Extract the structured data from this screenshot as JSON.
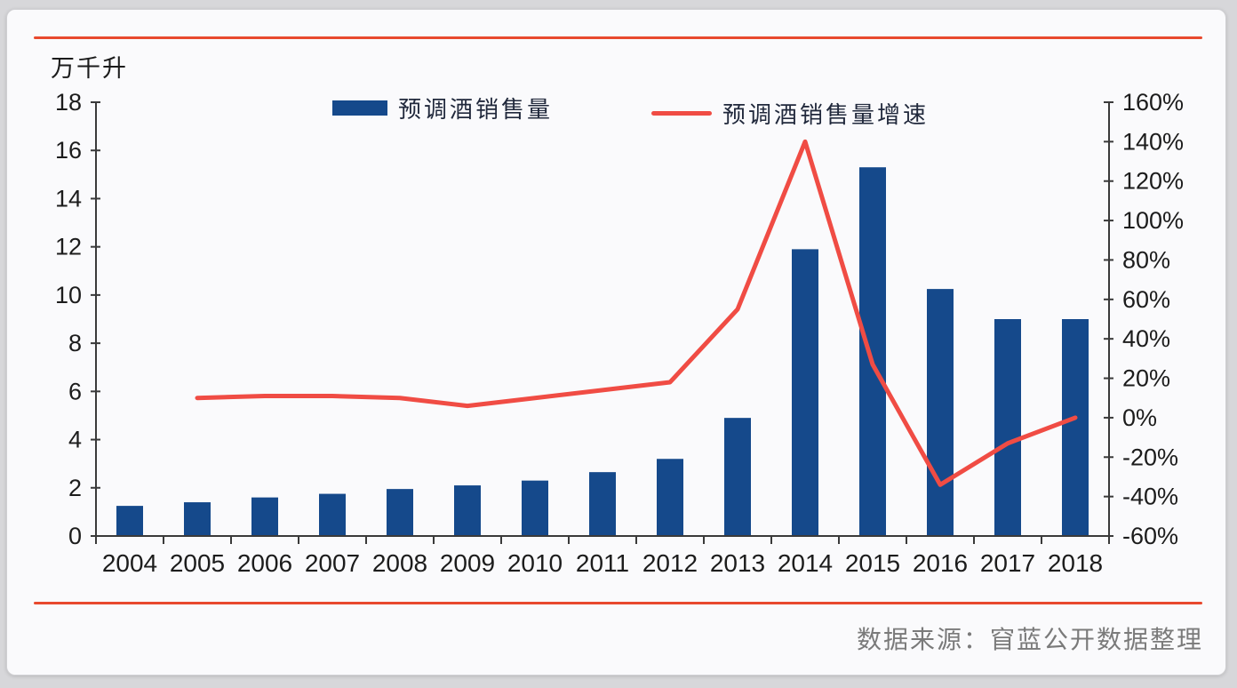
{
  "page": {
    "background_color": "#D7D7DA",
    "card_background_color": "#FAFAFC"
  },
  "decorations": {
    "top_rule_color": "#E8492E",
    "bottom_rule_color": "#E8492E"
  },
  "header": {
    "unit_label": "万千升"
  },
  "legend": {
    "bar_series_label": "预调酒销售量",
    "line_series_label": "预调酒销售量增速"
  },
  "footer": {
    "source_note": "数据来源：窅蓝公开数据整理"
  },
  "colors": {
    "bar": "#15498B",
    "line": "#F04C44",
    "axis": "#3A3A3A",
    "tick_text": "#1C1C1C"
  },
  "chart_data": {
    "type": "bar+line",
    "title": "",
    "unit_label": "万千升",
    "categories": [
      "2004",
      "2005",
      "2006",
      "2007",
      "2008",
      "2009",
      "2010",
      "2011",
      "2012",
      "2013",
      "2014",
      "2015",
      "2016",
      "2017",
      "2018"
    ],
    "series": [
      {
        "name": "预调酒销售量",
        "type": "bar",
        "y_axis": "left",
        "unit": "万千升",
        "values": [
          1.25,
          1.4,
          1.6,
          1.75,
          1.95,
          2.1,
          2.3,
          2.65,
          3.2,
          4.9,
          11.9,
          15.3,
          10.25,
          9.0,
          9.0
        ]
      },
      {
        "name": "预调酒销售量增速",
        "type": "line",
        "y_axis": "right",
        "unit": "%",
        "values": [
          null,
          10,
          11,
          11,
          10,
          6,
          10,
          14,
          18,
          55,
          140,
          27,
          -34,
          -13,
          0
        ]
      }
    ],
    "left_axis": {
      "min": 0,
      "max": 18,
      "tick_step": 2,
      "tick_labels": [
        "18",
        "16",
        "14",
        "12",
        "10",
        "8",
        "6",
        "4",
        "2",
        "0"
      ]
    },
    "right_axis": {
      "min": -60,
      "max": 160,
      "tick_step": 20,
      "tick_labels": [
        "160%",
        "140%",
        "120%",
        "100%",
        "80%",
        "60%",
        "40%",
        "20%",
        "0%",
        "-20%",
        "-40%",
        "-60%"
      ]
    },
    "legend_position": "top",
    "grid": false
  }
}
